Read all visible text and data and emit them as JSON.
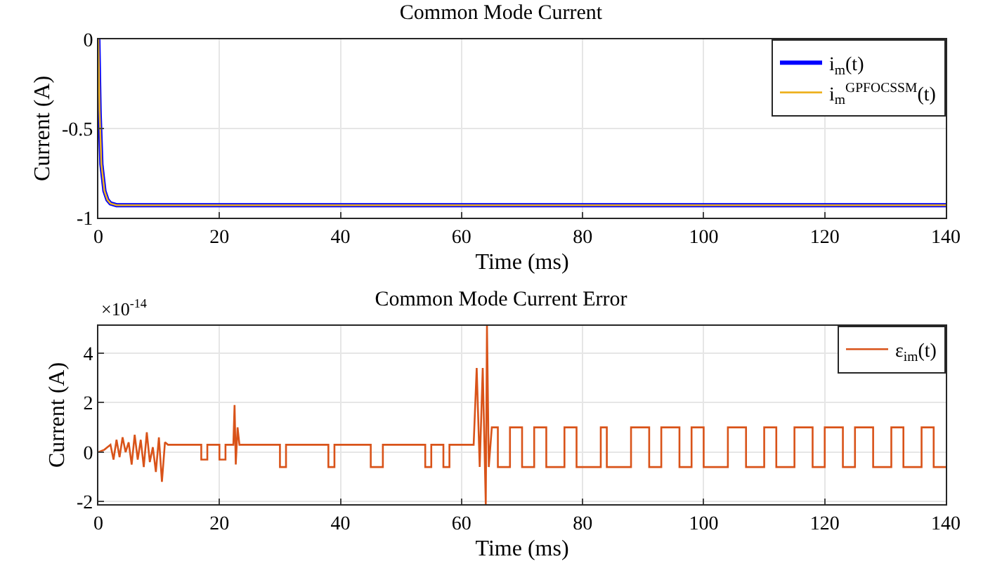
{
  "chart_data": [
    {
      "type": "line",
      "title": "Common Mode Current",
      "xlabel": "Time (ms)",
      "ylabel": "Current (A)",
      "xlim": [
        0,
        140
      ],
      "xticks": [
        0,
        20,
        40,
        60,
        80,
        100,
        120,
        140
      ],
      "ylim": [
        -1,
        0
      ],
      "yticks": [
        -1,
        -0.5,
        0
      ],
      "grid": true,
      "legend": "top right",
      "series": [
        {
          "name": "i$_{m}$(t)",
          "color": "#0000ff",
          "x": [
            0,
            0.2,
            0.5,
            1,
            1.5,
            2,
            3,
            5,
            140
          ],
          "values": [
            0,
            -0.4,
            -0.7,
            -0.85,
            -0.9,
            -0.92,
            -0.93,
            -0.93,
            -0.93
          ]
        },
        {
          "name": "i$_{m}$$^{GPFOCSSM}$(t)",
          "color": "#edb120",
          "x": [
            0,
            0.2,
            0.5,
            1,
            1.5,
            2,
            3,
            5,
            140
          ],
          "values": [
            0,
            -0.4,
            -0.7,
            -0.85,
            -0.9,
            -0.92,
            -0.93,
            -0.93,
            -0.93
          ]
        }
      ]
    },
    {
      "type": "line",
      "title": "Common Mode Current Error",
      "xlabel": "Time (ms)",
      "ylabel": "Current (A)",
      "annotations": [
        "×10$^{-14}$"
      ],
      "xlim": [
        0,
        140
      ],
      "xticks": [
        0,
        20,
        40,
        60,
        80,
        100,
        120,
        140
      ],
      "ylim": [
        -2.1,
        5.1
      ],
      "yticks": [
        -2,
        0,
        2,
        4
      ],
      "grid": true,
      "legend": "top right",
      "series": [
        {
          "name": "ε$_{im}$(t)",
          "color": "#d95319",
          "x": [
            0,
            1,
            2,
            2.5,
            3,
            3.5,
            4,
            4.5,
            5,
            5.5,
            6,
            6.5,
            7,
            7.5,
            8,
            8.5,
            9,
            9.5,
            10,
            10.5,
            11,
            11.5,
            17,
            17,
            18,
            18,
            20,
            20,
            21,
            21,
            22.3,
            22.5,
            22.7,
            23,
            23.3,
            30,
            30,
            31,
            31,
            38,
            38,
            39,
            39,
            45,
            45,
            47,
            47,
            54,
            54,
            55,
            55,
            57,
            57,
            58,
            58,
            62,
            62.5,
            63,
            63.5,
            64,
            64.2,
            64.5,
            65,
            66,
            66,
            68,
            68,
            70,
            70,
            72,
            72,
            74,
            74,
            77,
            77,
            79,
            79,
            83,
            83,
            84,
            84,
            88,
            88,
            91,
            91,
            93,
            93,
            96,
            96,
            98,
            98,
            100,
            100,
            104,
            104,
            107,
            107,
            110,
            110,
            112,
            112,
            115,
            115,
            118,
            118,
            120,
            120,
            123,
            123,
            125,
            125,
            128,
            128,
            131,
            131,
            133,
            133,
            136,
            136,
            138,
            138,
            140
          ],
          "values": [
            0,
            0.1,
            0.3,
            -0.3,
            0.5,
            -0.2,
            0.6,
            0,
            0.4,
            -0.5,
            0.7,
            -0.3,
            0.5,
            -0.6,
            0.8,
            -0.4,
            0.2,
            -0.8,
            0.6,
            -1.2,
            0.4,
            0.3,
            0.3,
            -0.3,
            -0.3,
            0.3,
            0.3,
            -0.3,
            -0.3,
            0.3,
            0.3,
            1.9,
            -0.5,
            1,
            0.3,
            0.3,
            -0.6,
            -0.6,
            0.3,
            0.3,
            -0.6,
            -0.6,
            0.3,
            0.3,
            -0.6,
            -0.6,
            0.3,
            0.3,
            -0.6,
            -0.6,
            0.3,
            0.3,
            -0.6,
            -0.6,
            0.3,
            0.3,
            3.4,
            -0.6,
            3.4,
            -2.1,
            5.1,
            -0.6,
            1,
            1,
            -0.6,
            -0.6,
            1,
            1,
            -0.6,
            -0.6,
            1,
            1,
            -0.6,
            -0.6,
            1,
            1,
            -0.6,
            -0.6,
            1,
            1,
            -0.6,
            -0.6,
            1,
            1,
            -0.6,
            -0.6,
            1,
            1,
            -0.6,
            -0.6,
            1,
            1,
            -0.6,
            -0.6,
            1,
            1,
            -0.6,
            -0.6,
            1,
            1,
            -0.6,
            -0.6,
            1,
            1,
            -0.6,
            -0.6,
            1,
            1,
            -0.6,
            -0.6,
            1,
            1,
            -0.6,
            -0.6,
            1,
            1,
            -0.6,
            -0.6,
            1,
            1,
            -0.6,
            -0.6
          ]
        }
      ]
    }
  ]
}
